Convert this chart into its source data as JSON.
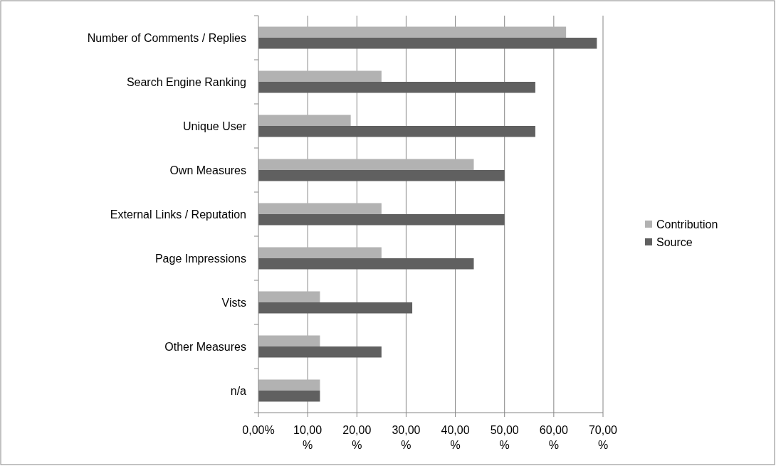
{
  "chart_data": {
    "type": "bar",
    "orientation": "horizontal",
    "categories": [
      "Number of Comments / Replies",
      "Search Engine Ranking",
      "Unique User",
      "Own Measures",
      "External Links / Reputation",
      "Page Impressions",
      "Vists",
      "Other Measures",
      "n/a"
    ],
    "series": [
      {
        "name": "Contribution",
        "color": "#b2b2b2",
        "values": [
          62.5,
          25,
          18.75,
          43.75,
          25,
          25,
          12.5,
          12.5,
          12.5
        ]
      },
      {
        "name": "Source",
        "color": "#606060",
        "values": [
          68.75,
          56.25,
          56.25,
          50,
          50,
          43.75,
          31.25,
          25,
          12.5
        ]
      }
    ],
    "xlim": [
      0,
      70
    ],
    "xticks": [
      {
        "value": 0,
        "label": "0,00%"
      },
      {
        "value": 10,
        "label": "10,00%"
      },
      {
        "value": 20,
        "label": "20,00%"
      },
      {
        "value": 30,
        "label": "30,00%"
      },
      {
        "value": 40,
        "label": "40,00%"
      },
      {
        "value": 50,
        "label": "50,00%"
      },
      {
        "value": 60,
        "label": "60,00%"
      },
      {
        "value": 70,
        "label": "70,00%"
      }
    ],
    "grid": "x",
    "legend": "right"
  }
}
